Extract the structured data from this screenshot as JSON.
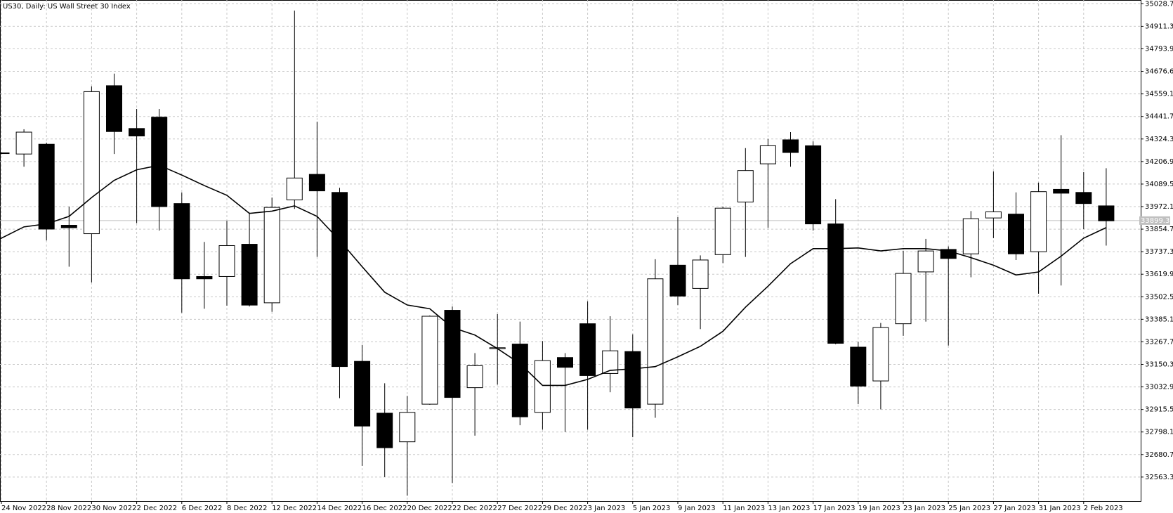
{
  "chart_data": {
    "type": "candlestick",
    "title": "US30, Daily:  US Wall Street 30 Index",
    "categories": [
      "24 Nov 2022",
      null,
      "28 Nov 2022",
      null,
      "30 Nov 2022",
      null,
      "2 Dec 2022",
      null,
      "6 Dec 2022",
      null,
      "8 Dec 2022",
      null,
      "12 Dec 2022",
      null,
      "14 Dec 2022",
      null,
      "16 Dec 2022",
      null,
      "20 Dec 2022",
      null,
      "22 Dec 2022",
      null,
      "27 Dec 2022",
      null,
      "29 Dec 2022",
      null,
      "3 Jan 2023",
      null,
      "5 Jan 2023",
      null,
      "9 Jan 2023",
      null,
      "11 Jan 2023",
      null,
      "13 Jan 2023",
      null,
      "17 Jan 2023",
      null,
      "19 Jan 2023",
      null,
      "23 Jan 2023",
      null,
      "25 Jan 2023",
      null,
      "27 Jan 2023",
      null,
      "31 Jan 2023",
      null,
      "2 Feb 2023",
      null
    ],
    "open": [
      34252,
      34246,
      34297,
      33875,
      33831,
      34602,
      34379,
      34438,
      33988,
      33608,
      33608,
      33776,
      33471,
      34007,
      34140,
      34046,
      33166,
      32896,
      32747,
      32943,
      33432,
      33029,
      33232,
      33256,
      32900,
      33186,
      33362,
      33103,
      33217,
      32943,
      33667,
      33546,
      33722,
      33996,
      34195,
      34320,
      34289,
      33882,
      33240,
      33064,
      33362,
      33632,
      33749,
      33726,
      33913,
      33933,
      33737,
      34062,
      34046,
      33976
    ],
    "high": [
      34255,
      34375,
      34305,
      33972,
      34598,
      34665,
      34481,
      34481,
      34046,
      33788,
      33898,
      33941,
      34019,
      34993,
      34414,
      34070,
      33252,
      33052,
      32986,
      33405,
      33452,
      33209,
      33412,
      33373,
      33272,
      33209,
      33479,
      33401,
      33307,
      33698,
      33917,
      33718,
      33972,
      34277,
      34324,
      34360,
      34312,
      34011,
      33268,
      33366,
      33741,
      33804,
      33765,
      33949,
      34156,
      34046,
      34097,
      34344,
      34152,
      34172
    ],
    "low": [
      34245,
      34180,
      33796,
      33659,
      33577,
      34246,
      33886,
      33847,
      33420,
      33440,
      33456,
      33452,
      33424,
      33960,
      33710,
      32974,
      32622,
      32563,
      32466,
      32940,
      32532,
      32779,
      33045,
      32833,
      32810,
      32798,
      32810,
      33005,
      32771,
      32872,
      33459,
      33334,
      33678,
      33710,
      33862,
      34180,
      33847,
      33255,
      32943,
      32916,
      33299,
      33373,
      33248,
      33604,
      33808,
      33694,
      33518,
      33561,
      33855,
      33769
    ],
    "close": [
      34250,
      34360,
      33855,
      33862,
      34571,
      34363,
      34340,
      33972,
      33596,
      33596,
      33769,
      33459,
      33968,
      34121,
      34054,
      33139,
      32829,
      32716,
      32900,
      33401,
      32978,
      33143,
      33237,
      32877,
      33170,
      33135,
      33092,
      33221,
      32923,
      33596,
      33506,
      33694,
      33964,
      34160,
      34289,
      34254,
      33882,
      33260,
      33037,
      33342,
      33624,
      33741,
      33702,
      33909,
      33945,
      33726,
      34050,
      34042,
      33988,
      33898
    ],
    "up_color": "#ffffff",
    "down_color": "#000000",
    "moving_average": {
      "color": "#000000",
      "values": [
        33803.9,
        33866.5,
        33882.1,
        33921.3,
        34019.1,
        34108.8,
        34163.9,
        34187.4,
        34136.5,
        34081.7,
        34030.9,
        33936.9,
        33948.6,
        33976.0,
        33921.3,
        33796.1,
        33659.1,
        33526.1,
        33459.5,
        33440.0,
        33342.1,
        33303.0,
        33232.5,
        33154.3,
        33040.8,
        33040.8,
        33072.1,
        33119.1,
        33126.9,
        33138.6,
        33189.5,
        33244.3,
        33322.5,
        33447.8,
        33557.3,
        33674.8,
        33753.0,
        33753.0,
        33756.9,
        33741.3,
        33753.0,
        33753.0,
        33741.3,
        33706.1,
        33667.0,
        33616.1,
        33631.7,
        33713.9,
        33807.8,
        33862.6
      ]
    },
    "last_price": 33899.3,
    "ylim": [
      32438.3,
      35048.3
    ],
    "yticks": [
      35028.7,
      34911.3,
      34793.9,
      34676.6,
      34559.1,
      34441.7,
      34324.3,
      34206.9,
      34089.5,
      33972.1,
      33854.7,
      33737.3,
      33619.9,
      33502.5,
      33385.1,
      33267.7,
      33150.3,
      33032.9,
      32915.5,
      32798.1,
      32680.7,
      32563.3
    ],
    "grid": true
  }
}
